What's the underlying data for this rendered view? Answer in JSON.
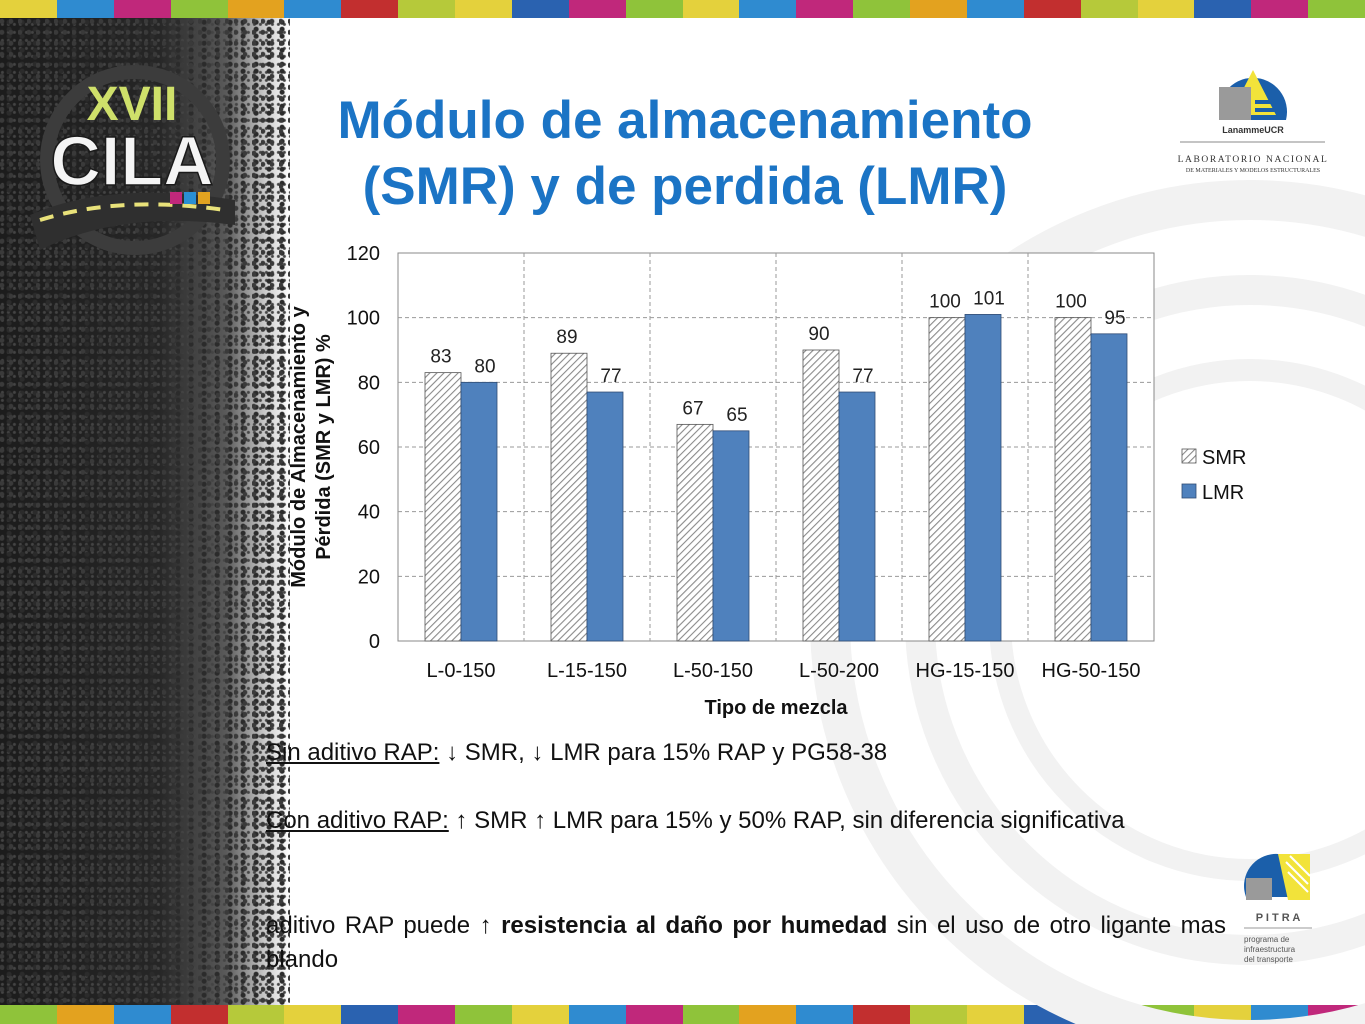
{
  "slide": {
    "title_line1": "Módulo de almacenamiento",
    "title_line2": "(SMR) y de perdida (LMR)",
    "colors": {
      "title": "#1b74c5",
      "smr_hatch": "#8a8a8a",
      "lmr_fill": "#4f81bd"
    }
  },
  "logos": {
    "cila": {
      "line1": "XVII",
      "line2": "CILA"
    },
    "lanamme": {
      "name": "LanammeUCR",
      "line1": "LABORATORIO NACIONAL",
      "line2": "DE MATERIALES Y MODELOS ESTRUCTURALES"
    },
    "pitra": {
      "name": "P I T R A",
      "line1": "programa de",
      "line2": "infraestructura",
      "line3": "del transporte"
    }
  },
  "chart_data": {
    "type": "bar",
    "categories": [
      "L-0-150",
      "L-15-150",
      "L-50-150",
      "L-50-200",
      "HG-15-150",
      "HG-50-150"
    ],
    "series": [
      {
        "name": "SMR",
        "values": [
          83,
          89,
          67,
          90,
          100,
          100
        ],
        "labels": [
          "83",
          "89",
          "67",
          "90",
          "100",
          "100"
        ]
      },
      {
        "name": "LMR",
        "values": [
          80,
          77,
          65,
          77,
          101,
          95
        ],
        "labels": [
          "80",
          "77",
          "65",
          "77",
          "101",
          "95"
        ]
      }
    ],
    "xlabel": "Tipo de mezcla",
    "ylabel_line1": "Módulo de Almacenamiento y",
    "ylabel_line2": "Pérdida (SMR y LMR) %",
    "ylim": [
      0,
      120
    ],
    "yticks": [
      "0",
      "20",
      "40",
      "60",
      "80",
      "100",
      "120"
    ],
    "grid": "dashed",
    "legend_position": "right"
  },
  "notes": {
    "n1_label": "Sin aditivo RAP:",
    "n1_text": " ↓ SMR, ↓ LMR para 15% RAP y PG58-38",
    "n2_label": "Con aditivo RAP:",
    "n2_text": " ↑ SMR ↑ LMR para 15% y 50% RAP, sin diferencia significativa",
    "n3_pre": "aditivo RAP puede ↑ ",
    "n3_bold": "resistencia al daño por humedad",
    "n3_post": " sin el uso de otro ligante mas blando"
  }
}
